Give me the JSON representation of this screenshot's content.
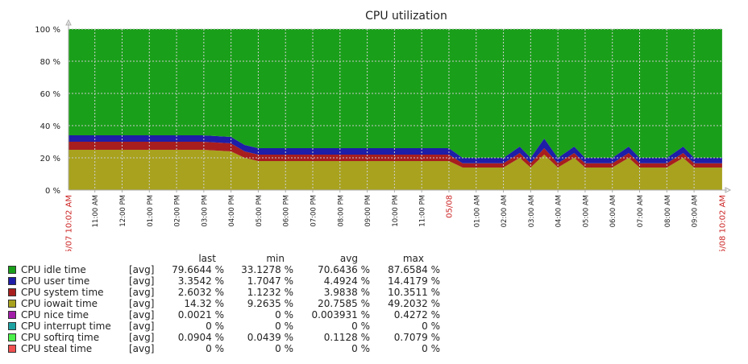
{
  "title": "CPU utilization",
  "colors": {
    "idle": "#1a9f1a",
    "user": "#1e1ea8",
    "system": "#a81e1e",
    "iowait": "#a8a21e",
    "nice": "#a31ea8",
    "interrupt": "#1ea3a3",
    "softirq": "#4bf04b",
    "steal": "#f05050"
  },
  "legend": {
    "headers": {
      "last": "last",
      "min": "min",
      "avg": "avg",
      "max": "max"
    },
    "rows": [
      {
        "name": "CPU idle time",
        "func": "[avg]",
        "last": "79.6644 %",
        "min": "33.1278 %",
        "avg": "70.6436 %",
        "max": "87.6584 %",
        "color": "#1a9f1a"
      },
      {
        "name": "CPU user time",
        "func": "[avg]",
        "last": "3.3542 %",
        "min": "1.7047 %",
        "avg": "4.4924 %",
        "max": "14.4179 %",
        "color": "#1e1ea8"
      },
      {
        "name": "CPU system time",
        "func": "[avg]",
        "last": "2.6032 %",
        "min": "1.1232 %",
        "avg": "3.9838 %",
        "max": "10.3511 %",
        "color": "#a81e1e"
      },
      {
        "name": "CPU iowait time",
        "func": "[avg]",
        "last": "14.32 %",
        "min": "9.2635 %",
        "avg": "20.7585 %",
        "max": "49.2032 %",
        "color": "#a8a21e"
      },
      {
        "name": "CPU nice time",
        "func": "[avg]",
        "last": "0.0021 %",
        "min": "0 %",
        "avg": "0.003931 %",
        "max": "0.4272 %",
        "color": "#a31ea8"
      },
      {
        "name": "CPU interrupt time",
        "func": "[avg]",
        "last": "0 %",
        "min": "0 %",
        "avg": "0 %",
        "max": "0 %",
        "color": "#1ea3a3"
      },
      {
        "name": "CPU softirq time",
        "func": "[avg]",
        "last": "0.0904 %",
        "min": "0.0439 %",
        "avg": "0.1128 %",
        "max": "0.7079 %",
        "color": "#4bf04b"
      },
      {
        "name": "CPU steal time",
        "func": "[avg]",
        "last": "0 %",
        "min": "0 %",
        "avg": "0 %",
        "max": "0 %",
        "color": "#f05050"
      }
    ]
  },
  "chart_data": {
    "type": "area",
    "title": "CPU utilization",
    "stacked": true,
    "ylim": [
      0,
      100
    ],
    "yticks": [
      "0 %",
      "20 %",
      "40 %",
      "60 %",
      "80 %",
      "100 %"
    ],
    "xlim_hours": [
      10.033,
      34.033
    ],
    "x_start_label": "05/07 10:02 AM",
    "x_end_label": "05/08 10:02 AM",
    "x_ticks": [
      {
        "label": "11:00 AM",
        "hour": 11,
        "highlight": false
      },
      {
        "label": "12:00 PM",
        "hour": 12,
        "highlight": false
      },
      {
        "label": "01:00 PM",
        "hour": 13,
        "highlight": false
      },
      {
        "label": "02:00 PM",
        "hour": 14,
        "highlight": false
      },
      {
        "label": "03:00 PM",
        "hour": 15,
        "highlight": false
      },
      {
        "label": "04:00 PM",
        "hour": 16,
        "highlight": false
      },
      {
        "label": "05:00 PM",
        "hour": 17,
        "highlight": false
      },
      {
        "label": "06:00 PM",
        "hour": 18,
        "highlight": false
      },
      {
        "label": "07:00 PM",
        "hour": 19,
        "highlight": false
      },
      {
        "label": "08:00 PM",
        "hour": 20,
        "highlight": false
      },
      {
        "label": "09:00 PM",
        "hour": 21,
        "highlight": false
      },
      {
        "label": "10:00 PM",
        "hour": 22,
        "highlight": false
      },
      {
        "label": "11:00 PM",
        "hour": 23,
        "highlight": false
      },
      {
        "label": "05/08",
        "hour": 24,
        "highlight": true
      },
      {
        "label": "01:00 AM",
        "hour": 25,
        "highlight": false
      },
      {
        "label": "02:00 AM",
        "hour": 26,
        "highlight": false
      },
      {
        "label": "03:00 AM",
        "hour": 27,
        "highlight": false
      },
      {
        "label": "04:00 AM",
        "hour": 28,
        "highlight": false
      },
      {
        "label": "05:00 AM",
        "hour": 29,
        "highlight": false
      },
      {
        "label": "06:00 AM",
        "hour": 30,
        "highlight": false
      },
      {
        "label": "07:00 AM",
        "hour": 31,
        "highlight": false
      },
      {
        "label": "08:00 AM",
        "hour": 32,
        "highlight": false
      },
      {
        "label": "09:00 AM",
        "hour": 33,
        "highlight": false
      }
    ],
    "x_hours": [
      10.03,
      11,
      12,
      13,
      14,
      14.5,
      15,
      16,
      16.5,
      17,
      18,
      19,
      20,
      21,
      22,
      23,
      24,
      24.5,
      25,
      26,
      26.6,
      27,
      27.5,
      28,
      28.6,
      29,
      30,
      30.6,
      31,
      32,
      32.6,
      33,
      34.03
    ],
    "series": [
      {
        "name": "CPU iowait time",
        "values": [
          25,
          25,
          25,
          25,
          25,
          25,
          25,
          24,
          20,
          18,
          18,
          18,
          18,
          18,
          18,
          18,
          18,
          14,
          14,
          14,
          20,
          14,
          22,
          14,
          20,
          14,
          14,
          20,
          14,
          14,
          20,
          14,
          14
        ]
      },
      {
        "name": "CPU system time",
        "values": [
          5,
          5,
          5,
          5,
          5,
          5,
          5,
          5,
          4,
          4,
          4,
          4,
          4,
          4,
          4,
          4,
          4,
          2.6,
          2.6,
          2.6,
          3,
          2.6,
          4,
          2.6,
          3,
          2.6,
          2.6,
          3,
          2.6,
          2.6,
          3,
          2.6,
          2.6
        ]
      },
      {
        "name": "CPU user time",
        "values": [
          4,
          4,
          4,
          4,
          4,
          4,
          4,
          4,
          4,
          4,
          4,
          4,
          4,
          4,
          4,
          4,
          4,
          3.4,
          3.4,
          3.4,
          4,
          3.4,
          6,
          3.4,
          4,
          3.4,
          3.4,
          4,
          3.4,
          3.4,
          4,
          3.4,
          3.4
        ]
      },
      {
        "name": "CPU idle time",
        "values": [
          66,
          66,
          66,
          66,
          66,
          66,
          66,
          67,
          72,
          74,
          74,
          74,
          74,
          74,
          74,
          74,
          74,
          80,
          80,
          80,
          73,
          80,
          68,
          80,
          73,
          80,
          80,
          73,
          80,
          80,
          73,
          80,
          80
        ]
      }
    ]
  }
}
